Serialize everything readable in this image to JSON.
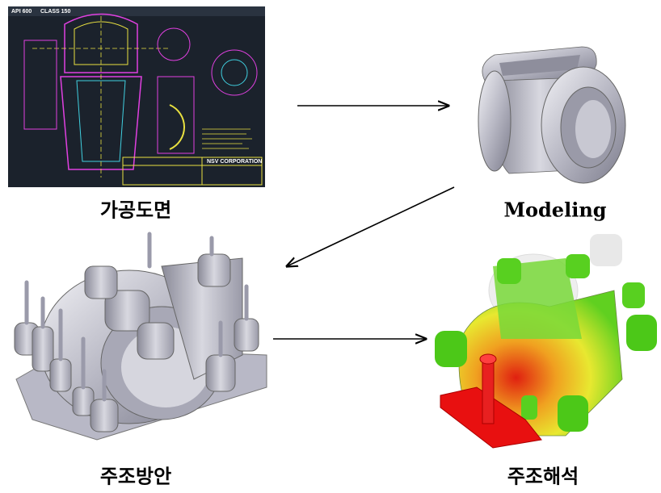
{
  "steps": [
    {
      "label": "가공도면"
    },
    {
      "label": "Modeling"
    },
    {
      "label": "주조방안"
    },
    {
      "label": "주조해석"
    }
  ],
  "drawing": {
    "texts": [
      "API 600",
      "CLASS 150",
      "NSV CORPORATION"
    ]
  }
}
